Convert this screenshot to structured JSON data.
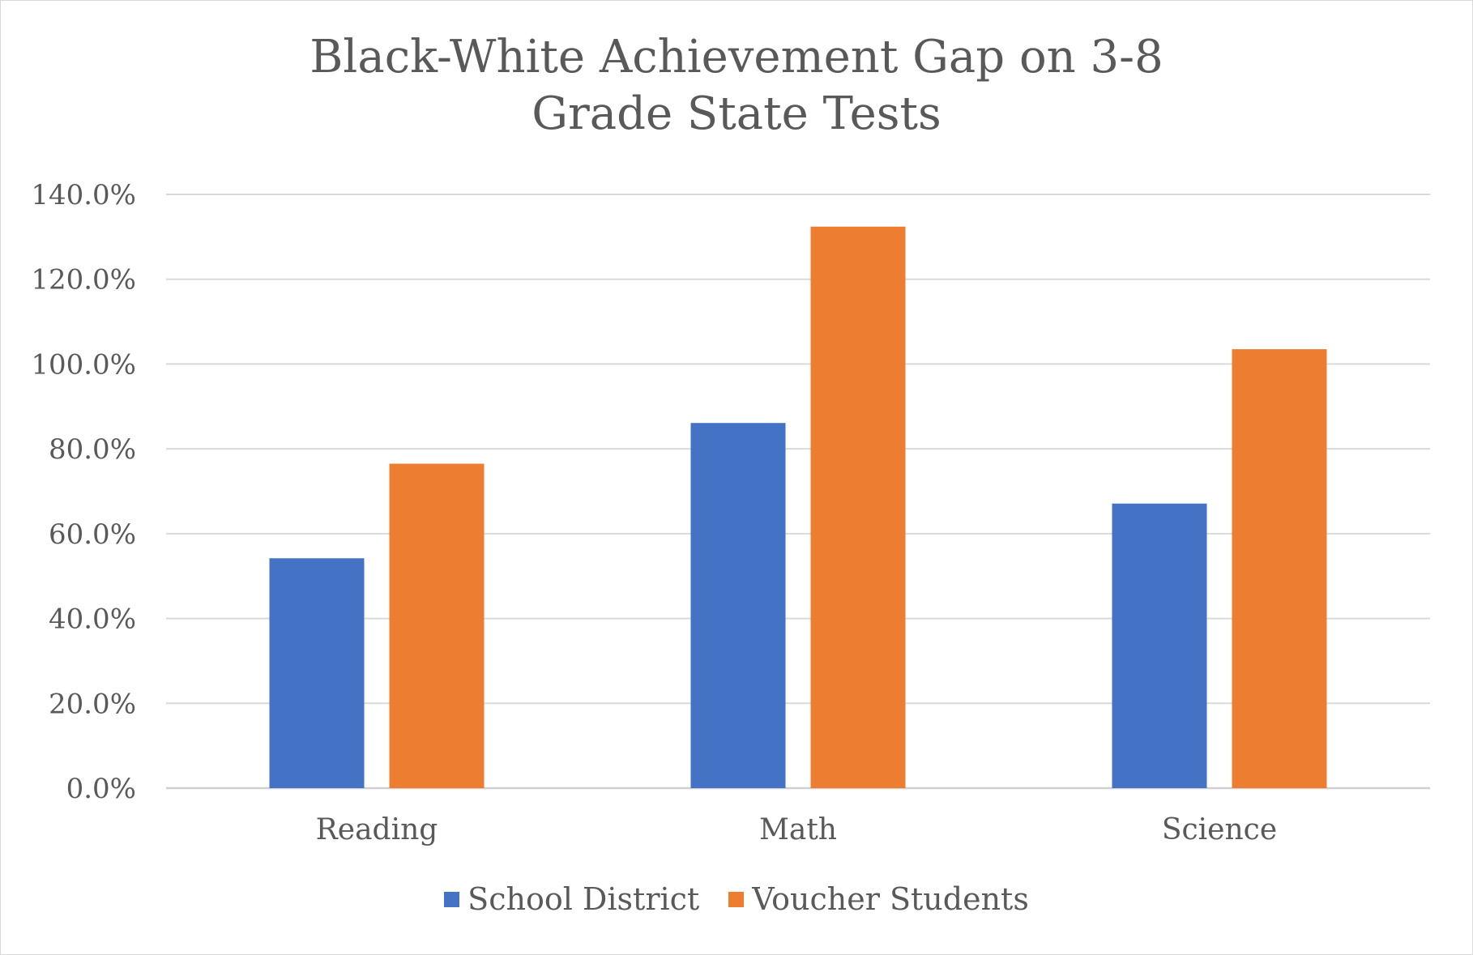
{
  "chart_data": {
    "type": "bar",
    "title": "Black-White Achievement Gap on 3-8 Grade State Tests",
    "categories": [
      "Reading",
      "Math",
      "Science"
    ],
    "series": [
      {
        "name": "School District",
        "color": "#4472C4",
        "values": [
          54.2,
          86.1,
          67.1
        ]
      },
      {
        "name": "Voucher Students",
        "color": "#ED7D31",
        "values": [
          76.5,
          132.4,
          103.5
        ]
      }
    ],
    "ylim": [
      0,
      140
    ],
    "yticks": [
      0,
      20,
      40,
      60,
      80,
      100,
      120,
      140
    ],
    "ytick_labels": [
      "0.0%",
      "20.0%",
      "40.0%",
      "60.0%",
      "80.0%",
      "100.0%",
      "120.0%",
      "140.0%"
    ],
    "grid": true,
    "legend_position": "bottom",
    "xlabel": "",
    "ylabel": ""
  }
}
